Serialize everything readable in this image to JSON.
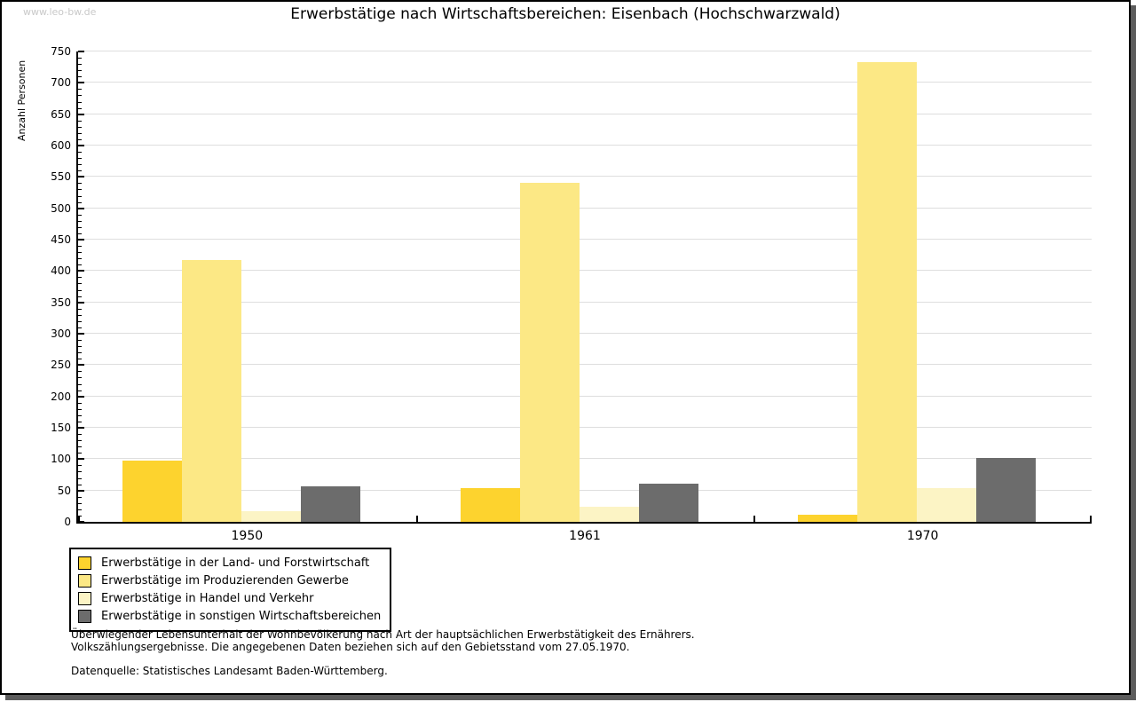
{
  "watermark": "www.leo-bw.de",
  "title": "Erwerbstätige nach Wirtschaftsbereichen: Eisenbach (Hochschwarzwald)",
  "chart_data": {
    "type": "bar",
    "title": "Erwerbstätige nach Wirtschaftsbereichen: Eisenbach (Hochschwarzwald)",
    "xlabel": "",
    "ylabel": "Anzahl Personen",
    "ylim": [
      0,
      750
    ],
    "ytick_step": 50,
    "minor_tick_step": 10,
    "grid": true,
    "legend_position": "bottom-left",
    "categories": [
      "1950",
      "1961",
      "1970"
    ],
    "series": [
      {
        "name": "Erwerbstätige in der Land- und Forstwirtschaft",
        "color": "#fdd32e",
        "values": [
          98,
          54,
          12
        ]
      },
      {
        "name": "Erwerbstätige im Produzierenden Gewerbe",
        "color": "#fce885",
        "values": [
          417,
          541,
          733
        ]
      },
      {
        "name": "Erwerbstätige in Handel und Verkehr",
        "color": "#fcf4c5",
        "values": [
          17,
          24,
          54
        ]
      },
      {
        "name": "Erwerbstätige in sonstigen Wirtschaftsbereichen",
        "color": "#6c6c6c",
        "values": [
          57,
          61,
          102
        ]
      }
    ]
  },
  "footnotes": {
    "line1": "Überwiegender Lebensunterhalt der Wohnbevölkerung nach Art der hauptsächlichen Erwerbstätigkeit des Ernährers.",
    "line2": "Volkszählungsergebnisse. Die angegebenen Daten beziehen sich auf den Gebietsstand vom 27.05.1970.",
    "source": "Datenquelle: Statistisches Landesamt Baden-Württemberg."
  },
  "colors": {
    "gridline": "#dedede",
    "axis": "#000000",
    "watermark": "#c9c9c9",
    "shadow": "#5c5c5c"
  }
}
